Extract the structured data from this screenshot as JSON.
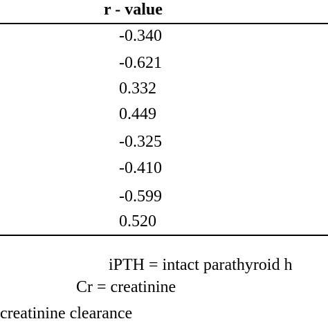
{
  "table": {
    "header": "r - value",
    "rows": [
      "-0.340",
      "-0.621",
      "0.332",
      "0.449",
      "-0.325",
      "-0.410",
      "-0.599",
      "0.520"
    ]
  },
  "footnotes": [
    "iPTH = intact parathyroid h",
    "Cr = creatinine",
    "creatinine clearance"
  ]
}
